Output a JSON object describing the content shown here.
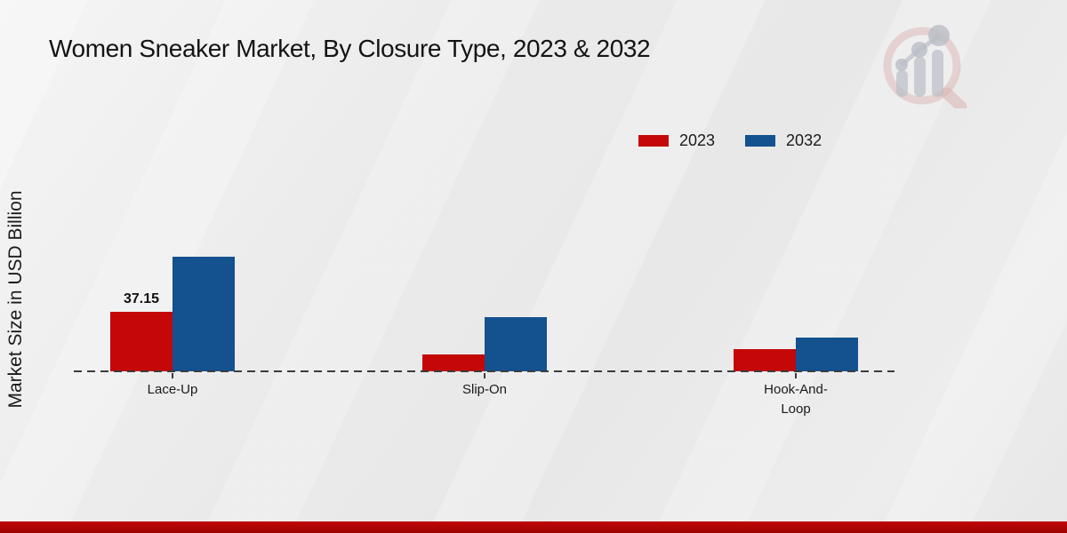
{
  "page": {
    "title": "Women Sneaker Market, By Closure Type, 2023 & 2032",
    "y_axis_label": "Market Size in USD Billion"
  },
  "legend": {
    "items": [
      {
        "label": "2023",
        "color": "#c40808"
      },
      {
        "label": "2032",
        "color": "#14518f"
      }
    ]
  },
  "chart_data": {
    "type": "bar",
    "title": "Women Sneaker Market, By Closure Type, 2023 & 2032",
    "xlabel": "",
    "ylabel": "Market Size in USD Billion",
    "categories": [
      "Lace-Up",
      "Slip-On",
      "Hook-And-Loop"
    ],
    "series": [
      {
        "name": "2023",
        "color": "#c40808",
        "values": [
          37.15,
          10.8,
          14.1
        ]
      },
      {
        "name": "2032",
        "color": "#14518f",
        "values": [
          71.5,
          34.1,
          21.3
        ]
      }
    ],
    "value_labels": [
      {
        "category": "Lace-Up",
        "series": "2023",
        "text": "37.15"
      }
    ],
    "ylim": [
      0,
      75
    ],
    "grid": false,
    "baseline_style": "dashed",
    "legend_position": "upper right"
  },
  "icons": {
    "logo": "magnifier-bar-chart-watermark"
  },
  "colors": {
    "background": "#eaeaea",
    "footer_band_top": "#c00606",
    "footer_band_bottom": "#9d0303",
    "baseline": "#3c3c3c",
    "logo_ring": "#d9aeae",
    "logo_bars": "#b9bdc6"
  }
}
